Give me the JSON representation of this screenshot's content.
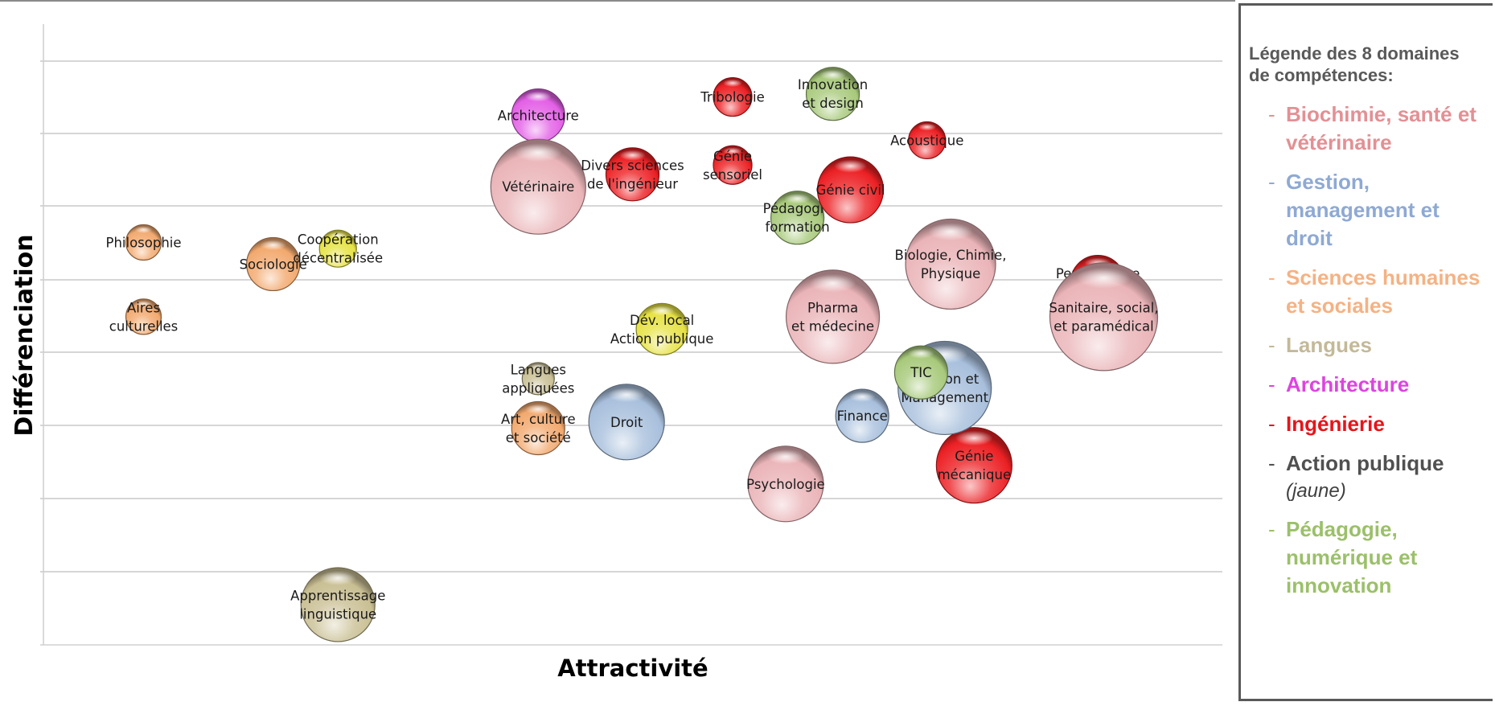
{
  "chart_data": {
    "type": "bubble",
    "xlabel": "Attractivité",
    "ylabel": "Différenciation",
    "xlim": [
      0,
      100
    ],
    "ylim": [
      0,
      100
    ],
    "grid": true,
    "legend_position": "right",
    "points": [
      {
        "label": [
          "Philosophie"
        ],
        "x": 8.5,
        "y": 65,
        "size": 22,
        "category": "sciences_humaines"
      },
      {
        "label": [
          "Aires",
          "culturelles"
        ],
        "x": 8.5,
        "y": 53,
        "size": 22,
        "category": "sciences_humaines"
      },
      {
        "label": [
          "Sociologie"
        ],
        "x": 19.5,
        "y": 61.5,
        "size": 33,
        "category": "sciences_humaines"
      },
      {
        "label": [
          "Coopération",
          "décentralisée"
        ],
        "x": 25,
        "y": 64,
        "size": 23,
        "category": "action_publique"
      },
      {
        "label": [
          "Apprentissage",
          "linguistique"
        ],
        "x": 25,
        "y": 6.5,
        "size": 46,
        "category": "langues"
      },
      {
        "label": [
          "Architecture"
        ],
        "x": 42,
        "y": 85.5,
        "size": 33,
        "category": "architecture"
      },
      {
        "label": [
          "Vétérinaire"
        ],
        "x": 42,
        "y": 74,
        "size": 59,
        "category": "biochimie"
      },
      {
        "label": [
          "Divers sciences",
          "de l'ingénieur"
        ],
        "x": 50,
        "y": 76,
        "size": 33,
        "category": "ingenierie"
      },
      {
        "label": [
          "Langues",
          "appliquées"
        ],
        "x": 42,
        "y": 43,
        "size": 20,
        "category": "langues"
      },
      {
        "label": [
          "Art, culture",
          "et société"
        ],
        "x": 42,
        "y": 35,
        "size": 33,
        "category": "sciences_humaines"
      },
      {
        "label": [
          "Droit"
        ],
        "x": 49.5,
        "y": 36,
        "size": 47,
        "category": "gestion"
      },
      {
        "label": [
          "Dév. local",
          "Action publique"
        ],
        "x": 52.5,
        "y": 51,
        "size": 32,
        "category": "action_publique"
      },
      {
        "label": [
          "Tribologie"
        ],
        "x": 58.5,
        "y": 88.5,
        "size": 24,
        "category": "ingenierie"
      },
      {
        "label": [
          "Génie",
          "sensoriel"
        ],
        "x": 58.5,
        "y": 77.5,
        "size": 24,
        "category": "ingenierie"
      },
      {
        "label": [
          "Innovation",
          "et design"
        ],
        "x": 67,
        "y": 89,
        "size": 33,
        "category": "pedagogie"
      },
      {
        "label": [
          "Acoustique"
        ],
        "x": 75,
        "y": 81.5,
        "size": 23,
        "category": "ingenierie"
      },
      {
        "label": [
          "Pédagogie",
          "formation"
        ],
        "x": 64,
        "y": 69,
        "size": 33,
        "category": "pedagogie"
      },
      {
        "label": [
          "Génie civil"
        ],
        "x": 68.5,
        "y": 73.5,
        "size": 41,
        "category": "ingenierie"
      },
      {
        "label": [
          "Biologie, Chimie,",
          "Physique"
        ],
        "x": 77,
        "y": 61.5,
        "size": 56,
        "category": "biochimie"
      },
      {
        "label": [
          "Performance",
          "industrielle"
        ],
        "x": 89.5,
        "y": 58.5,
        "size": 34,
        "category": "ingenierie"
      },
      {
        "label": [
          "Sanitaire, social,",
          "et paramédical"
        ],
        "x": 90,
        "y": 53,
        "size": 67,
        "category": "biochimie"
      },
      {
        "label": [
          "Pharma",
          "et médecine"
        ],
        "x": 67,
        "y": 53,
        "size": 58,
        "category": "biochimie"
      },
      {
        "label": [
          "Génie",
          "mécanique"
        ],
        "x": 79,
        "y": 29,
        "size": 47,
        "category": "ingenierie"
      },
      {
        "label": [
          "Gestion et",
          "Management"
        ],
        "x": 76.5,
        "y": 41.5,
        "size": 58,
        "category": "gestion"
      },
      {
        "label": [
          "TIC"
        ],
        "x": 74.5,
        "y": 44,
        "size": 33,
        "category": "pedagogie"
      },
      {
        "label": [
          "Finance"
        ],
        "x": 69.5,
        "y": 37,
        "size": 33,
        "category": "gestion"
      },
      {
        "label": [
          "Psychologie"
        ],
        "x": 63,
        "y": 26,
        "size": 47,
        "category": "biochimie"
      }
    ],
    "categories": {
      "biochimie": {
        "color": "#eab4b8"
      },
      "gestion": {
        "color": "#a8bfdc"
      },
      "sciences_humaines": {
        "color": "#f2a96e"
      },
      "langues": {
        "color": "#c9bf93"
      },
      "architecture": {
        "color": "#e360e6"
      },
      "ingenierie": {
        "color": "#ec2024"
      },
      "action_publique": {
        "color": "#e6e244"
      },
      "pedagogie": {
        "color": "#a8c97b"
      }
    }
  },
  "legend": {
    "title": "Légende des 8 domaines de compétences:",
    "dash": "-",
    "items": [
      {
        "label": "Biochimie, santé et vétérinaire",
        "color": "#e39094"
      },
      {
        "label": "Gestion, management et droit",
        "color": "#8ea9d4"
      },
      {
        "label": "Sciences humaines et sociales",
        "color": "#f5b283"
      },
      {
        "label": "Langues",
        "color": "#c4b998"
      },
      {
        "label": "Architecture",
        "color": "#dd44df"
      },
      {
        "label": "Ingénierie",
        "color": "#e8141a"
      },
      {
        "label": "Action publique",
        "note": "(jaune)",
        "color": "#505050"
      },
      {
        "label": "Pédagogie, numérique et innovation",
        "color": "#9bc06a"
      }
    ]
  }
}
